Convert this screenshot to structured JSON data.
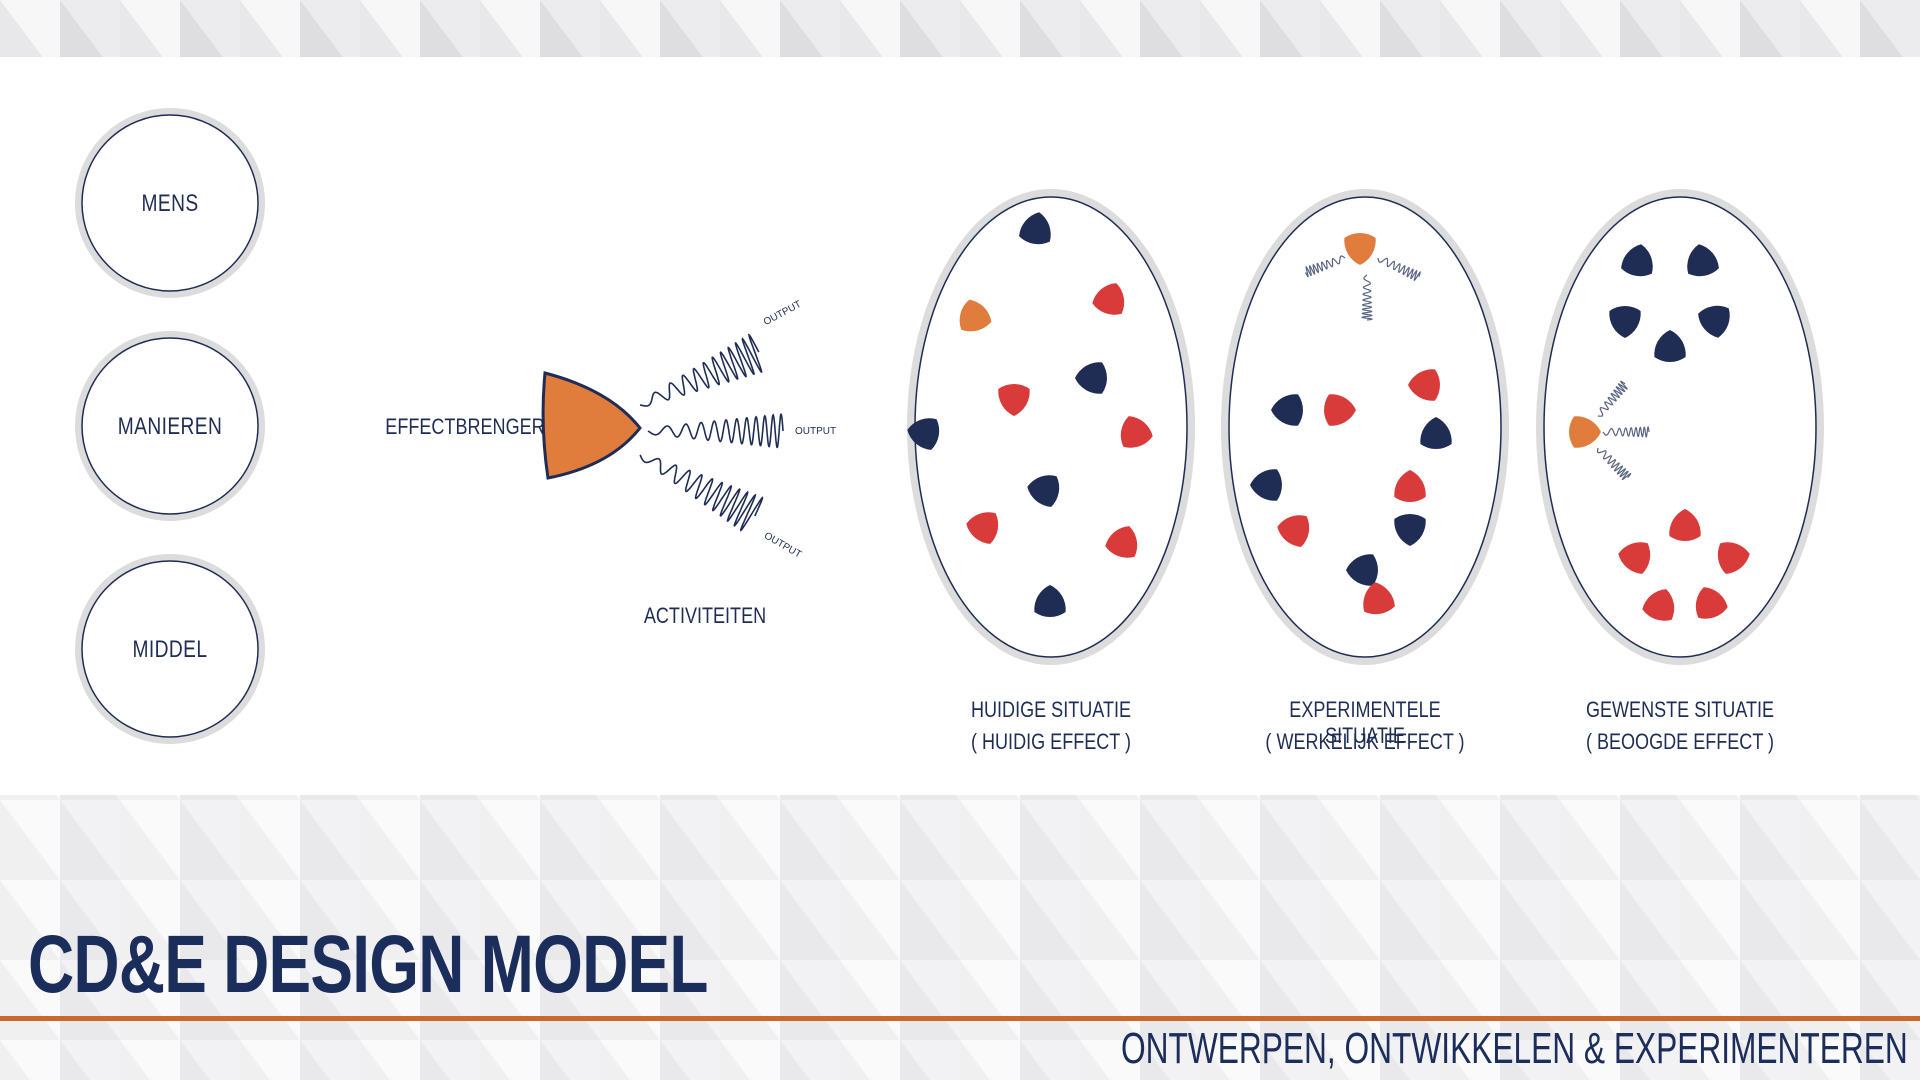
{
  "circles": [
    "MENS",
    "MANIEREN",
    "MIDDEL"
  ],
  "effectbrenger": "EFFECTBRENGER",
  "output_label": "OUTPUT",
  "activiteiten": "ACTIVITEITEN",
  "situations": [
    {
      "line1": "HUIDIGE SITUATIE",
      "line2": "( HUIDIG EFFECT )"
    },
    {
      "line1": "EXPERIMENTELE SITUATIE",
      "line2": "( WERKELIJK EFFECT )"
    },
    {
      "line1": "GEWENSTE SITUATIE",
      "line2": "( BEOOGDE EFFECT )"
    }
  ],
  "title": "CD&E DESIGN MODEL",
  "subtitle": "ONTWERPEN, ONTWIKKELEN & EXPERIMENTEREN",
  "colors": {
    "navy": "#1f2d55",
    "orange": "#e07d3c",
    "red": "#d93a3a",
    "grey": "#d9d9d9",
    "accent_line": "#c96a2c"
  }
}
